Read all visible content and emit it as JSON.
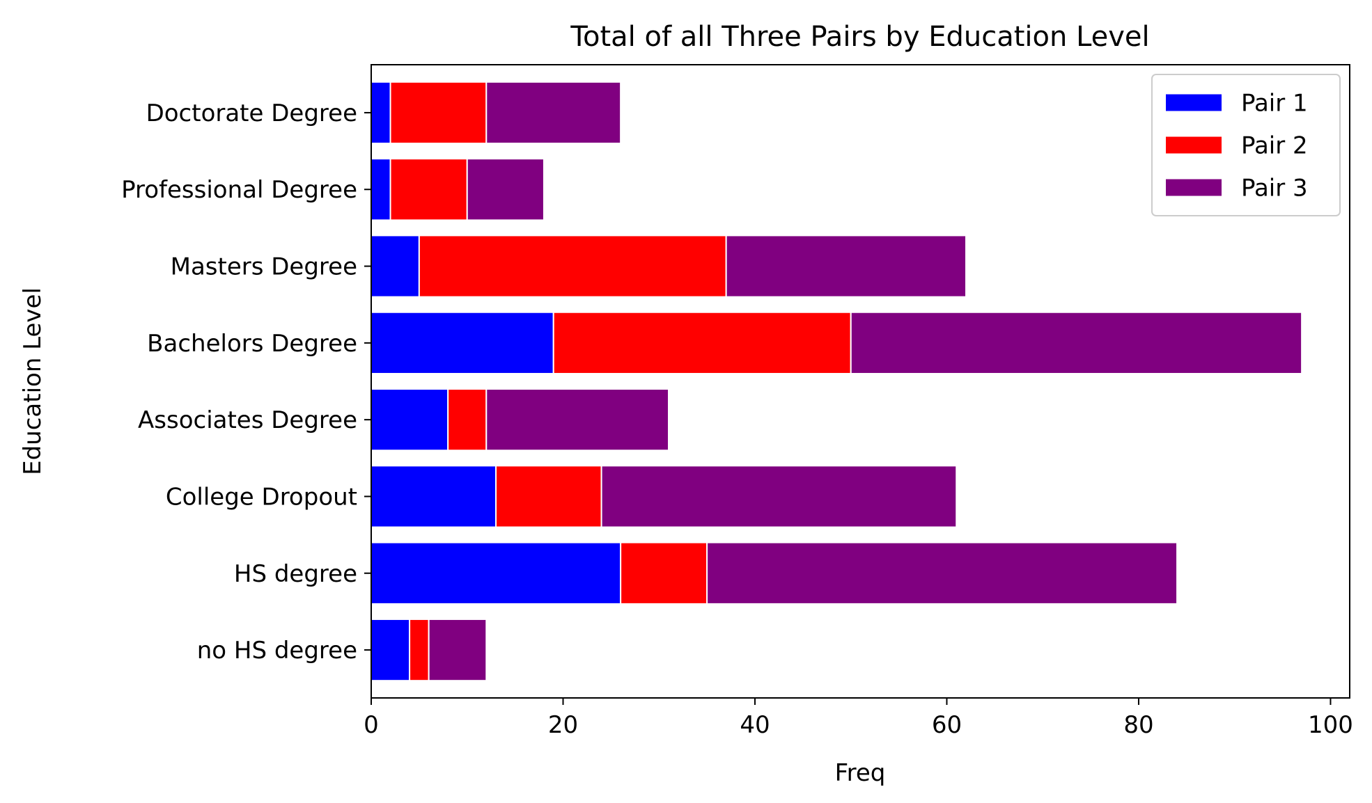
{
  "chart_data": {
    "type": "bar",
    "orientation": "horizontal",
    "stacked": true,
    "title": "Total of all Three Pairs by Education Level",
    "xlabel": "Freq",
    "ylabel": "Education Level",
    "xlim": [
      0,
      102
    ],
    "xticks": [
      0,
      20,
      40,
      60,
      80,
      100
    ],
    "grid": false,
    "legend_position": "top-right",
    "categories": [
      "no HS degree",
      "HS degree",
      "College Dropout",
      "Associates Degree",
      "Bachelors Degree",
      "Masters Degree",
      "Professional Degree",
      "Doctorate Degree"
    ],
    "series": [
      {
        "name": "Pair 1",
        "color": "#0000ff",
        "values": [
          4,
          26,
          13,
          8,
          19,
          5,
          2,
          2
        ]
      },
      {
        "name": "Pair 2",
        "color": "#ff0000",
        "values": [
          2,
          9,
          11,
          4,
          31,
          32,
          8,
          10
        ]
      },
      {
        "name": "Pair 3",
        "color": "#800080",
        "values": [
          6,
          49,
          37,
          19,
          47,
          25,
          8,
          14
        ]
      }
    ]
  }
}
